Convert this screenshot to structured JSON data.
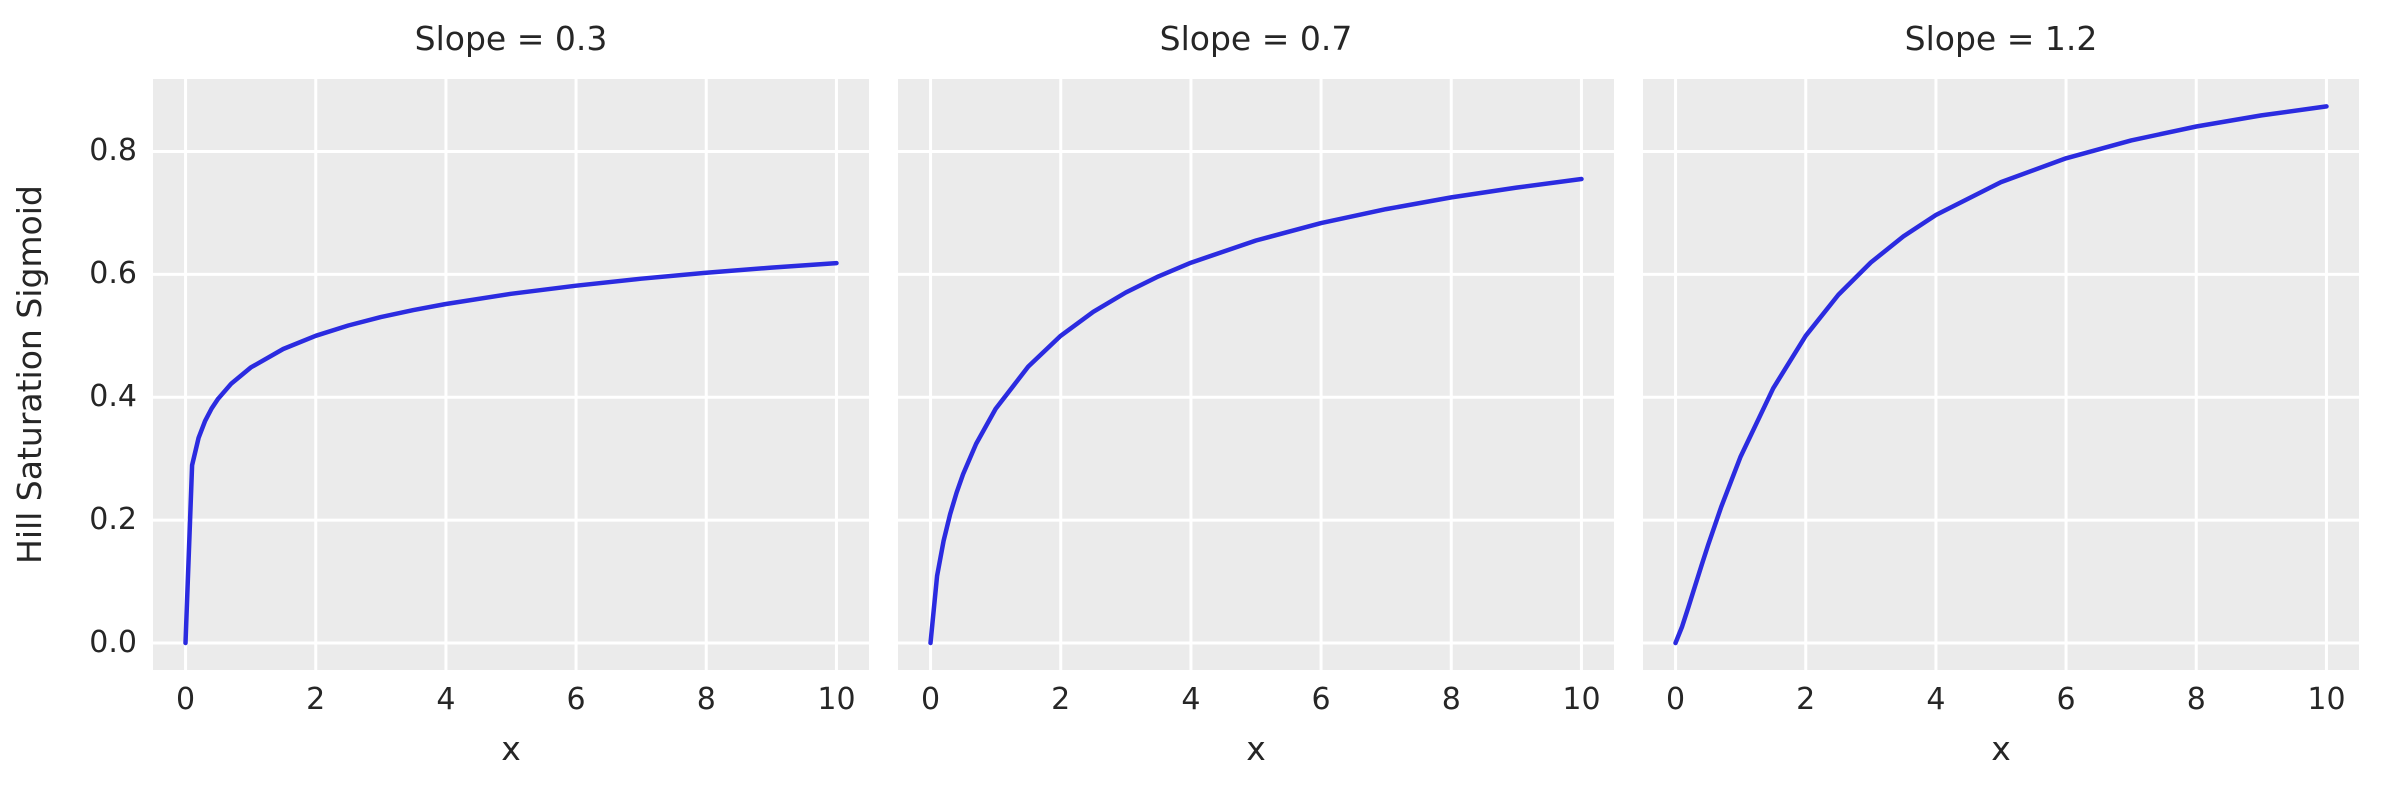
{
  "figure": {
    "ylabel": "Hill Saturation Sigmoid",
    "background_color": "#ffffff",
    "axes_background_color": "#ebebeb",
    "grid_color": "#ffffff",
    "line_color": "#2b2be0",
    "text_color": "#262626"
  },
  "chart_data": [
    {
      "type": "line",
      "title": "Slope = 0.3",
      "slope": 0.3,
      "xlabel": "x",
      "xlim": [
        -0.5,
        10.5
      ],
      "ylim": [
        -0.044,
        0.918
      ],
      "xticks": [
        0,
        2,
        4,
        6,
        8,
        10
      ],
      "xtick_labels": [
        "0",
        "2",
        "4",
        "6",
        "8",
        "10"
      ],
      "yticks": [
        0.0,
        0.2,
        0.4,
        0.6,
        0.8
      ],
      "ytick_labels": [
        "0.0",
        "0.2",
        "0.4",
        "0.6",
        "0.8"
      ],
      "grid": true,
      "legend": false,
      "x": [
        0,
        0.1,
        0.2,
        0.3,
        0.4,
        0.5,
        0.7,
        1,
        1.5,
        2,
        2.5,
        3,
        3.5,
        4,
        5,
        6,
        7,
        8,
        9,
        10
      ],
      "y": [
        0,
        0.2893,
        0.3339,
        0.3614,
        0.3816,
        0.3975,
        0.4219,
        0.4482,
        0.4785,
        0.5,
        0.5167,
        0.5304,
        0.5419,
        0.5518,
        0.5683,
        0.5816,
        0.5929,
        0.6025,
        0.611,
        0.6184
      ]
    },
    {
      "type": "line",
      "title": "Slope = 0.7",
      "slope": 0.7,
      "xlabel": "x",
      "xlim": [
        -0.5,
        10.5
      ],
      "ylim": [
        -0.044,
        0.918
      ],
      "xticks": [
        0,
        2,
        4,
        6,
        8,
        10
      ],
      "xtick_labels": [
        "0",
        "2",
        "4",
        "6",
        "8",
        "10"
      ],
      "yticks": [
        0.0,
        0.2,
        0.4,
        0.6,
        0.8
      ],
      "ytick_labels": [],
      "grid": true,
      "legend": false,
      "x": [
        0,
        0.1,
        0.2,
        0.3,
        0.4,
        0.5,
        0.7,
        1,
        1.5,
        2,
        2.5,
        3,
        3.5,
        4,
        5,
        6,
        7,
        8,
        9,
        10
      ],
      "y": [
        0,
        0.1094,
        0.1663,
        0.2095,
        0.2448,
        0.2748,
        0.3241,
        0.381,
        0.4498,
        0.5,
        0.539,
        0.5705,
        0.5967,
        0.619,
        0.6551,
        0.6834,
        0.7062,
        0.7252,
        0.7413,
        0.7552
      ]
    },
    {
      "type": "line",
      "title": "Slope = 1.2",
      "slope": 1.2,
      "xlabel": "x",
      "xlim": [
        -0.5,
        10.5
      ],
      "ylim": [
        -0.044,
        0.918
      ],
      "xticks": [
        0,
        2,
        4,
        6,
        8,
        10
      ],
      "xtick_labels": [
        "0",
        "2",
        "4",
        "6",
        "8",
        "10"
      ],
      "yticks": [
        0.0,
        0.2,
        0.4,
        0.6,
        0.8
      ],
      "ytick_labels": [],
      "grid": true,
      "legend": false,
      "x": [
        0,
        0.1,
        0.2,
        0.3,
        0.4,
        0.5,
        0.7,
        1,
        1.5,
        2,
        2.5,
        3,
        3.5,
        4,
        5,
        6,
        7,
        8,
        9,
        10
      ],
      "y": [
        0,
        0.0267,
        0.0593,
        0.0931,
        0.1266,
        0.1593,
        0.221,
        0.3033,
        0.4146,
        0.5,
        0.5666,
        0.6193,
        0.6618,
        0.6967,
        0.7502,
        0.7889,
        0.8181,
        0.8407,
        0.8588,
        0.8734
      ]
    }
  ]
}
